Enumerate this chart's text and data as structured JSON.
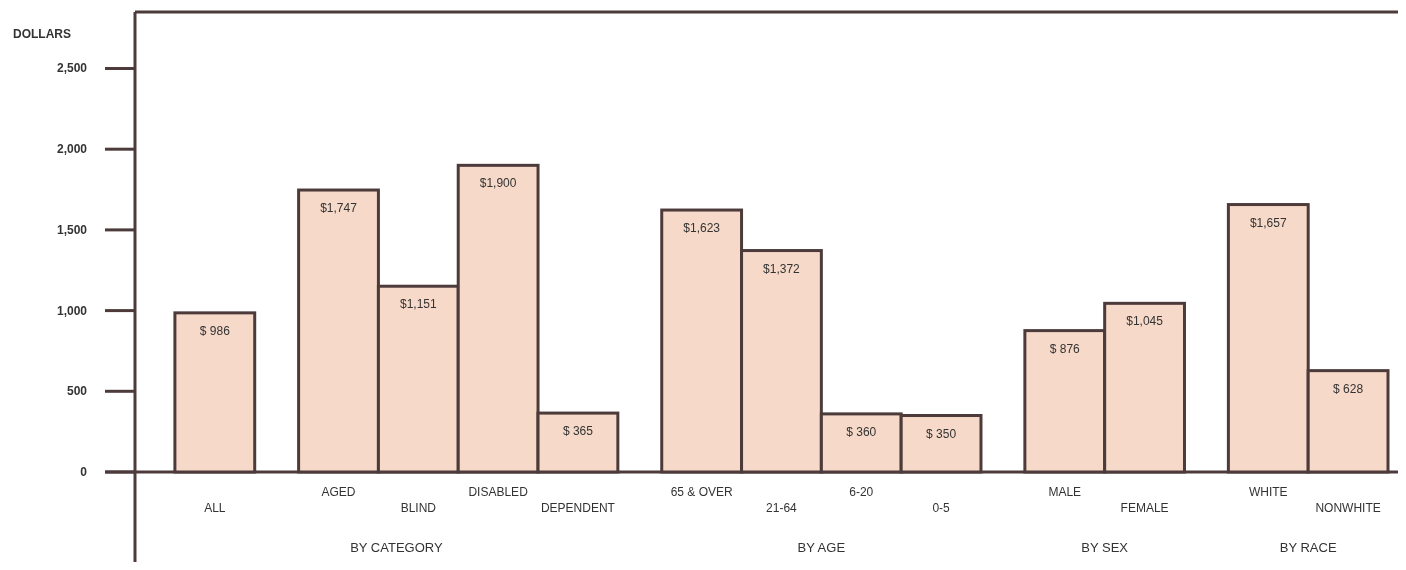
{
  "chart_data": {
    "type": "bar",
    "ylabel": "DOLLARS",
    "categories": [
      "ALL",
      null,
      "AGED",
      "BLIND",
      "DISABLED",
      "DEPENDENT",
      null,
      "65 & OVER",
      "21-64",
      "6-20",
      "0-5",
      null,
      "MALE",
      "FEMALE",
      null,
      "WHITE",
      "NONWHITE"
    ],
    "values": [
      986,
      null,
      1747,
      1151,
      1900,
      365,
      null,
      1623,
      1372,
      360,
      350,
      null,
      876,
      1045,
      null,
      1657,
      628
    ],
    "value_labels": [
      "$ 986",
      null,
      "$1,747",
      "$1,151",
      "$1,900",
      "$ 365",
      null,
      "$1,623",
      "$1,372",
      "$ 360",
      "$ 350",
      null,
      "$ 876",
      "$1,045",
      null,
      "$1,657",
      "$ 628"
    ],
    "color": "#f6d9c8",
    "ylim": [
      0,
      2850
    ],
    "yticks": [
      0,
      {
        "value": 500,
        "label": "500"
      },
      {
        "value": 1000,
        "label": "1,000"
      },
      {
        "value": 1500,
        "label": "1,500"
      },
      {
        "value": 2000,
        "label": "2,000"
      },
      {
        "value": 2500,
        "label": "2,500"
      }
    ],
    "grid": false,
    "annotations": [
      "BY CATEGORY",
      "BY AGE",
      "BY SEX",
      "BY RACE"
    ]
  }
}
